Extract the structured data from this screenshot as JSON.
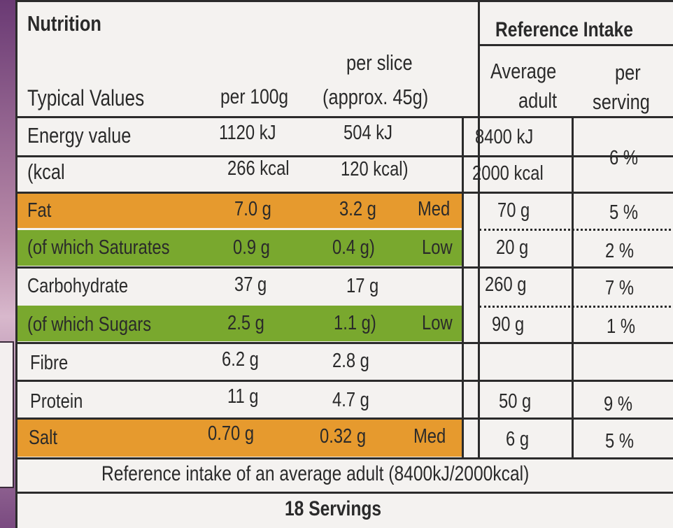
{
  "header": {
    "title": "Nutrition",
    "reference_intake": "Reference Intake"
  },
  "columns": {
    "typical_values": "Typical Values",
    "per_100g": "per 100g",
    "per_slice_line1": "per slice",
    "per_slice_line2": "(approx. 45g)",
    "average_adult_line1": "Average",
    "average_adult_line2": "adult",
    "per_serving_line1": "per",
    "per_serving_line2": "serving"
  },
  "rows": [
    {
      "label": "Energy value",
      "per100": "1120 kJ",
      "perslice": "504 kJ",
      "level": "",
      "adult": "8400 kJ",
      "serving": "",
      "band": "none"
    },
    {
      "label": "(kcal",
      "per100": "266 kcal",
      "perslice": "120 kcal)",
      "level": "",
      "adult": "2000 kcal",
      "serving": "6 %",
      "band": "none"
    },
    {
      "label": "Fat",
      "per100": "7.0 g",
      "perslice": "3.2 g",
      "level": "Med",
      "adult": "70 g",
      "serving": "5 %",
      "band": "orange"
    },
    {
      "label": "(of which Saturates",
      "per100": "0.9 g",
      "perslice": "0.4 g)",
      "level": "Low",
      "adult": "20 g",
      "serving": "2 %",
      "band": "green"
    },
    {
      "label": "Carbohydrate",
      "per100": "37 g",
      "perslice": "17 g",
      "level": "",
      "adult": "260 g",
      "serving": "7 %",
      "band": "none"
    },
    {
      "label": "(of which Sugars",
      "per100": "2.5 g",
      "perslice": "1.1 g)",
      "level": "Low",
      "adult": "90 g",
      "serving": "1 %",
      "band": "green"
    },
    {
      "label": "Fibre",
      "per100": "6.2 g",
      "perslice": "2.8 g",
      "level": "",
      "adult": "",
      "serving": "",
      "band": "none"
    },
    {
      "label": "Protein",
      "per100": "11 g",
      "perslice": "4.7 g",
      "level": "",
      "adult": "50 g",
      "serving": "9 %",
      "band": "none"
    },
    {
      "label": "Salt",
      "per100": "0.70 g",
      "perslice": "0.32 g",
      "level": "Med",
      "adult": "6 g",
      "serving": "5 %",
      "band": "orange"
    }
  ],
  "footer": {
    "reference_note": "Reference intake of an average adult (8400kJ/2000kcal)",
    "servings": "18 Servings"
  },
  "colors": {
    "med_band": "#e69a2e",
    "low_band": "#79a82e",
    "packaging": "#5d2e6e"
  }
}
